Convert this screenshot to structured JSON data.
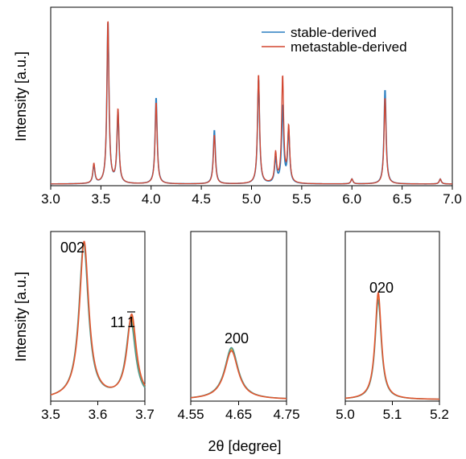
{
  "chart_data": [
    {
      "type": "line",
      "title": "",
      "xlabel": "",
      "ylabel": "Intensity [a.u.]",
      "xlim": [
        3.0,
        7.0
      ],
      "ylim": [
        0,
        1.08
      ],
      "xticks": [
        "3.0",
        "3.5",
        "4.0",
        "4.5",
        "5.0",
        "5.5",
        "6.0",
        "6.5",
        "7.0"
      ],
      "yticks_shown": false,
      "legend": "top-right",
      "grid": false,
      "series": [
        {
          "name": "stable-derived",
          "color": "#2a7fc1",
          "peaks": [
            {
              "x": 3.43,
              "height": 0.11
            },
            {
              "x": 3.57,
              "height": 0.99
            },
            {
              "x": 3.67,
              "height": 0.43
            },
            {
              "x": 4.05,
              "height": 0.53
            },
            {
              "x": 4.63,
              "height": 0.33
            },
            {
              "x": 5.07,
              "height": 0.64
            },
            {
              "x": 5.24,
              "height": 0.15
            },
            {
              "x": 5.31,
              "height": 0.47
            },
            {
              "x": 5.37,
              "height": 0.32
            },
            {
              "x": 6.0,
              "height": 0.03
            },
            {
              "x": 6.33,
              "height": 0.58
            },
            {
              "x": 6.88,
              "height": 0.03
            }
          ]
        },
        {
          "name": "metastable-derived",
          "color": "#d2452f",
          "peaks": [
            {
              "x": 3.43,
              "height": 0.12
            },
            {
              "x": 3.57,
              "height": 1.0
            },
            {
              "x": 3.67,
              "height": 0.45
            },
            {
              "x": 4.05,
              "height": 0.5
            },
            {
              "x": 4.63,
              "height": 0.3
            },
            {
              "x": 5.07,
              "height": 0.67
            },
            {
              "x": 5.24,
              "height": 0.18
            },
            {
              "x": 5.31,
              "height": 0.65
            },
            {
              "x": 5.37,
              "height": 0.34
            },
            {
              "x": 6.0,
              "height": 0.03
            },
            {
              "x": 6.33,
              "height": 0.53
            },
            {
              "x": 6.88,
              "height": 0.03
            }
          ]
        }
      ]
    },
    {
      "type": "line",
      "xlabel": "2θ [degree]",
      "ylabel": "Intensity [a.u.]",
      "xlim": [
        3.5,
        3.7
      ],
      "ylim": [
        0,
        1.08
      ],
      "xticks": [
        "3.5",
        "3.6",
        "3.7"
      ],
      "annotations": [
        {
          "text": "002",
          "x": 3.57
        },
        {
          "text": "11",
          "bar": "1",
          "x": 3.67
        }
      ],
      "band_color": "#f29a1f",
      "series": [
        {
          "name": "stable-derived",
          "color": "#4f9a8b",
          "peaks": [
            {
              "x": 3.57,
              "height": 0.99
            },
            {
              "x": 3.67,
              "height": 0.49
            }
          ]
        },
        {
          "name": "metastable-derived",
          "color": "#e0562f",
          "peaks": [
            {
              "x": 3.571,
              "height": 1.0
            },
            {
              "x": 3.672,
              "height": 0.53
            }
          ]
        }
      ]
    },
    {
      "type": "line",
      "xlabel": "2θ [degree]",
      "xlim": [
        4.55,
        4.75
      ],
      "ylim": [
        0,
        1.08
      ],
      "xticks": [
        "4.55",
        "4.65",
        "4.75"
      ],
      "annotations": [
        {
          "text": "200",
          "x": 4.635
        }
      ],
      "band_color": "#f29a1f",
      "series": [
        {
          "name": "stable-derived",
          "color": "#4f9a8b",
          "peaks": [
            {
              "x": 4.635,
              "height": 0.33
            }
          ]
        },
        {
          "name": "metastable-derived",
          "color": "#e0562f",
          "peaks": [
            {
              "x": 4.635,
              "height": 0.31
            }
          ]
        }
      ]
    },
    {
      "type": "line",
      "xlabel": "2θ [degree]",
      "xlim": [
        5.0,
        5.2
      ],
      "ylim": [
        0,
        1.08
      ],
      "xticks": [
        "5.0",
        "5.1",
        "5.2"
      ],
      "annotations": [
        {
          "text": "020",
          "x": 5.07
        }
      ],
      "band_color": "#f29a1f",
      "series": [
        {
          "name": "stable-derived",
          "color": "#4f9a8b",
          "peaks": [
            {
              "x": 5.07,
              "height": 0.63
            }
          ]
        },
        {
          "name": "metastable-derived",
          "color": "#e0562f",
          "peaks": [
            {
              "x": 5.07,
              "height": 0.68
            }
          ]
        }
      ]
    }
  ]
}
